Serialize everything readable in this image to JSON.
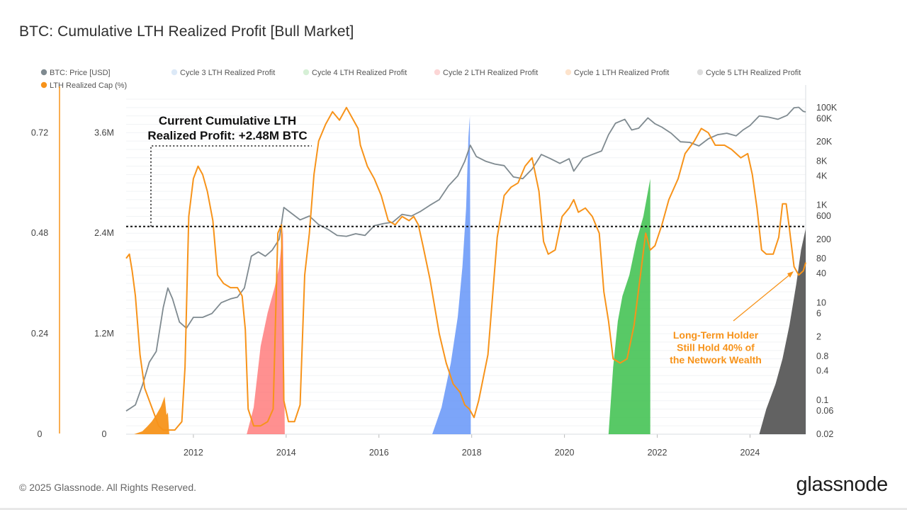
{
  "title": "BTC: Cumulative LTH Realized Profit [Bull Market]",
  "footer": "© 2025 Glassnode. All Rights Reserved.",
  "brand": "glassnode",
  "chart_data": {
    "type": "area",
    "title": "BTC: Cumulative LTH Realized Profit [Bull Market]",
    "legend": [
      {
        "name": "BTC: Price [USD]",
        "color": "#7f8a90"
      },
      {
        "name": "Cycle 3 LTH Realized Profit",
        "color": "#dce9f7"
      },
      {
        "name": "Cycle 4 LTH Realized Profit",
        "color": "#d6f0d6"
      },
      {
        "name": "Cycle 2 LTH Realized Profit",
        "color": "#fcd6d6"
      },
      {
        "name": "Cycle 1 LTH Realized Profit",
        "color": "#fde3cc"
      },
      {
        "name": "Cycle 5 LTH Realized Profit",
        "color": "#dcdcdc"
      },
      {
        "name": "LTH Realized Cap (%)",
        "color": "#f7931a"
      }
    ],
    "legend_position": "top",
    "x_ticks": [
      "2012",
      "2014",
      "2016",
      "2018",
      "2020",
      "2022",
      "2024"
    ],
    "x_range": [
      2010.55,
      2025.2
    ],
    "y_left_pct_ticks": [
      "0",
      "0.24",
      "0.48",
      "0.72"
    ],
    "y_left_pct_range": [
      0,
      0.8
    ],
    "y_left_btc_ticks": [
      "0",
      "1.2M",
      "2.4M",
      "3.6M"
    ],
    "y_left_btc_range": [
      0,
      4000000
    ],
    "y_right_ticks": [
      "0.02",
      "0.06",
      "0.1",
      "0.4",
      "0.8",
      "2",
      "6",
      "10",
      "40",
      "80",
      "200",
      "600",
      "1K",
      "4K",
      "8K",
      "20K",
      "60K",
      "100K"
    ],
    "y_right_scale": "log",
    "y_right_range": [
      0.02,
      150000
    ],
    "grid": true,
    "reference_line": {
      "label": "Current Cumulative LTH Realized Profit: +2.48M BTC",
      "value_btc": 2480000
    },
    "annotation": {
      "text_lines": [
        "Long-Term Holder",
        "Still Hold 40% of",
        "the Network Wealth"
      ],
      "color": "#f7931a"
    },
    "callout_lines": [
      "Current Cumulative LTH",
      "Realized Profit: +2.48M BTC"
    ],
    "cycle_areas": [
      {
        "name": "Cycle 1 LTH Realized Profit",
        "color": "#f7931a",
        "opacity": 0.95,
        "points": [
          [
            2010.72,
            0
          ],
          [
            2010.9,
            35000
          ],
          [
            2011.0,
            90000
          ],
          [
            2011.1,
            150000
          ],
          [
            2011.2,
            230000
          ],
          [
            2011.3,
            330000
          ],
          [
            2011.38,
            450000
          ],
          [
            2011.42,
            230000
          ],
          [
            2011.45,
            260000
          ],
          [
            2011.48,
            0
          ]
        ]
      },
      {
        "name": "Cycle 2 LTH Realized Profit",
        "color": "#ff6b6b",
        "opacity": 0.75,
        "points": [
          [
            2013.15,
            0
          ],
          [
            2013.3,
            320000
          ],
          [
            2013.45,
            1050000
          ],
          [
            2013.6,
            1450000
          ],
          [
            2013.75,
            1750000
          ],
          [
            2013.85,
            2000000
          ],
          [
            2013.93,
            2450000
          ],
          [
            2013.97,
            0
          ]
        ]
      },
      {
        "name": "Cycle 3 LTH Realized Profit",
        "color": "#5b8ef7",
        "opacity": 0.8,
        "points": [
          [
            2017.15,
            0
          ],
          [
            2017.35,
            320000
          ],
          [
            2017.55,
            850000
          ],
          [
            2017.7,
            1400000
          ],
          [
            2017.8,
            2000000
          ],
          [
            2017.88,
            2700000
          ],
          [
            2017.93,
            3550000
          ],
          [
            2017.96,
            3800000
          ],
          [
            2017.98,
            0
          ]
        ]
      },
      {
        "name": "Cycle 4 LTH Realized Profit",
        "color": "#3bbf4b",
        "opacity": 0.85,
        "points": [
          [
            2020.95,
            0
          ],
          [
            2021.05,
            800000
          ],
          [
            2021.15,
            1350000
          ],
          [
            2021.25,
            1650000
          ],
          [
            2021.4,
            1900000
          ],
          [
            2021.55,
            2300000
          ],
          [
            2021.7,
            2600000
          ],
          [
            2021.85,
            3050000
          ],
          [
            2021.85,
            0
          ]
        ]
      },
      {
        "name": "Cycle 5 LTH Realized Profit",
        "color": "#555555",
        "opacity": 0.92,
        "points": [
          [
            2024.2,
            0
          ],
          [
            2024.35,
            300000
          ],
          [
            2024.55,
            600000
          ],
          [
            2024.7,
            900000
          ],
          [
            2024.85,
            1300000
          ],
          [
            2025.0,
            1800000
          ],
          [
            2025.1,
            2200000
          ],
          [
            2025.2,
            2450000
          ],
          [
            2025.2,
            0
          ]
        ]
      }
    ],
    "lth_realized_cap_pct": [
      [
        2010.55,
        0.42
      ],
      [
        2010.62,
        0.43
      ],
      [
        2010.68,
        0.39
      ],
      [
        2010.75,
        0.33
      ],
      [
        2010.85,
        0.19
      ],
      [
        2010.95,
        0.11
      ],
      [
        2011.05,
        0.08
      ],
      [
        2011.15,
        0.05
      ],
      [
        2011.25,
        0.02
      ],
      [
        2011.35,
        0.01
      ],
      [
        2011.45,
        0.01
      ],
      [
        2011.6,
        0.01
      ],
      [
        2011.75,
        0.03
      ],
      [
        2011.82,
        0.16
      ],
      [
        2011.9,
        0.52
      ],
      [
        2012.0,
        0.61
      ],
      [
        2012.1,
        0.64
      ],
      [
        2012.2,
        0.62
      ],
      [
        2012.3,
        0.58
      ],
      [
        2012.42,
        0.51
      ],
      [
        2012.52,
        0.38
      ],
      [
        2012.65,
        0.36
      ],
      [
        2012.8,
        0.35
      ],
      [
        2012.95,
        0.35
      ],
      [
        2013.05,
        0.33
      ],
      [
        2013.12,
        0.25
      ],
      [
        2013.18,
        0.06
      ],
      [
        2013.3,
        0.02
      ],
      [
        2013.45,
        0.02
      ],
      [
        2013.6,
        0.03
      ],
      [
        2013.72,
        0.06
      ],
      [
        2013.82,
        0.48
      ],
      [
        2013.9,
        0.5
      ],
      [
        2013.95,
        0.08
      ],
      [
        2014.05,
        0.03
      ],
      [
        2014.18,
        0.03
      ],
      [
        2014.3,
        0.07
      ],
      [
        2014.4,
        0.38
      ],
      [
        2014.5,
        0.48
      ],
      [
        2014.6,
        0.62
      ],
      [
        2014.7,
        0.7
      ],
      [
        2014.85,
        0.74
      ],
      [
        2015.0,
        0.77
      ],
      [
        2015.15,
        0.75
      ],
      [
        2015.3,
        0.78
      ],
      [
        2015.45,
        0.75
      ],
      [
        2015.55,
        0.73
      ],
      [
        2015.6,
        0.69
      ],
      [
        2015.75,
        0.64
      ],
      [
        2015.9,
        0.61
      ],
      [
        2016.05,
        0.57
      ],
      [
        2016.2,
        0.51
      ],
      [
        2016.35,
        0.5
      ],
      [
        2016.5,
        0.52
      ],
      [
        2016.65,
        0.51
      ],
      [
        2016.75,
        0.52
      ],
      [
        2016.85,
        0.5
      ],
      [
        2016.95,
        0.45
      ],
      [
        2017.1,
        0.37
      ],
      [
        2017.3,
        0.24
      ],
      [
        2017.45,
        0.17
      ],
      [
        2017.6,
        0.12
      ],
      [
        2017.75,
        0.1
      ],
      [
        2017.85,
        0.07
      ],
      [
        2017.95,
        0.06
      ],
      [
        2018.05,
        0.04
      ],
      [
        2018.15,
        0.08
      ],
      [
        2018.35,
        0.19
      ],
      [
        2018.55,
        0.47
      ],
      [
        2018.7,
        0.57
      ],
      [
        2018.85,
        0.59
      ],
      [
        2019.0,
        0.6
      ],
      [
        2019.15,
        0.64
      ],
      [
        2019.3,
        0.66
      ],
      [
        2019.45,
        0.58
      ],
      [
        2019.55,
        0.46
      ],
      [
        2019.65,
        0.43
      ],
      [
        2019.8,
        0.44
      ],
      [
        2019.95,
        0.52
      ],
      [
        2020.1,
        0.54
      ],
      [
        2020.2,
        0.56
      ],
      [
        2020.3,
        0.53
      ],
      [
        2020.45,
        0.54
      ],
      [
        2020.6,
        0.52
      ],
      [
        2020.75,
        0.48
      ],
      [
        2020.85,
        0.34
      ],
      [
        2020.95,
        0.27
      ],
      [
        2021.05,
        0.18
      ],
      [
        2021.2,
        0.17
      ],
      [
        2021.35,
        0.18
      ],
      [
        2021.5,
        0.26
      ],
      [
        2021.65,
        0.39
      ],
      [
        2021.75,
        0.48
      ],
      [
        2021.85,
        0.44
      ],
      [
        2021.95,
        0.45
      ],
      [
        2022.1,
        0.5
      ],
      [
        2022.25,
        0.56
      ],
      [
        2022.45,
        0.61
      ],
      [
        2022.6,
        0.67
      ],
      [
        2022.8,
        0.7
      ],
      [
        2022.95,
        0.73
      ],
      [
        2023.1,
        0.72
      ],
      [
        2023.25,
        0.69
      ],
      [
        2023.45,
        0.69
      ],
      [
        2023.6,
        0.68
      ],
      [
        2023.8,
        0.66
      ],
      [
        2023.95,
        0.67
      ],
      [
        2024.05,
        0.62
      ],
      [
        2024.15,
        0.54
      ],
      [
        2024.25,
        0.44
      ],
      [
        2024.35,
        0.43
      ],
      [
        2024.5,
        0.43
      ],
      [
        2024.62,
        0.47
      ],
      [
        2024.7,
        0.55
      ],
      [
        2024.78,
        0.55
      ],
      [
        2024.85,
        0.49
      ],
      [
        2024.95,
        0.4
      ],
      [
        2025.05,
        0.38
      ],
      [
        2025.15,
        0.39
      ],
      [
        2025.2,
        0.41
      ]
    ],
    "btc_price_usd": [
      [
        2010.55,
        0.06
      ],
      [
        2010.75,
        0.08
      ],
      [
        2010.9,
        0.2
      ],
      [
        2011.05,
        0.6
      ],
      [
        2011.2,
        1.0
      ],
      [
        2011.35,
        8
      ],
      [
        2011.45,
        20
      ],
      [
        2011.55,
        12
      ],
      [
        2011.7,
        4
      ],
      [
        2011.85,
        3
      ],
      [
        2012.0,
        5
      ],
      [
        2012.2,
        5
      ],
      [
        2012.4,
        6
      ],
      [
        2012.6,
        10
      ],
      [
        2012.8,
        12
      ],
      [
        2012.95,
        13
      ],
      [
        2013.1,
        20
      ],
      [
        2013.25,
        90
      ],
      [
        2013.4,
        110
      ],
      [
        2013.55,
        90
      ],
      [
        2013.7,
        120
      ],
      [
        2013.85,
        200
      ],
      [
        2013.95,
        900
      ],
      [
        2014.1,
        700
      ],
      [
        2014.3,
        500
      ],
      [
        2014.5,
        600
      ],
      [
        2014.7,
        400
      ],
      [
        2014.9,
        320
      ],
      [
        2015.1,
        240
      ],
      [
        2015.3,
        230
      ],
      [
        2015.5,
        260
      ],
      [
        2015.7,
        240
      ],
      [
        2015.9,
        380
      ],
      [
        2016.1,
        420
      ],
      [
        2016.3,
        450
      ],
      [
        2016.5,
        650
      ],
      [
        2016.7,
        600
      ],
      [
        2016.9,
        750
      ],
      [
        2017.1,
        1000
      ],
      [
        2017.3,
        1300
      ],
      [
        2017.5,
        2500
      ],
      [
        2017.7,
        4000
      ],
      [
        2017.85,
        8000
      ],
      [
        2017.97,
        17000
      ],
      [
        2018.1,
        10000
      ],
      [
        2018.3,
        8000
      ],
      [
        2018.5,
        7000
      ],
      [
        2018.7,
        6500
      ],
      [
        2018.9,
        3800
      ],
      [
        2019.1,
        3500
      ],
      [
        2019.3,
        5500
      ],
      [
        2019.5,
        11000
      ],
      [
        2019.7,
        9000
      ],
      [
        2019.9,
        7200
      ],
      [
        2020.1,
        9000
      ],
      [
        2020.2,
        5000
      ],
      [
        2020.4,
        9200
      ],
      [
        2020.6,
        11000
      ],
      [
        2020.8,
        13000
      ],
      [
        2020.95,
        28000
      ],
      [
        2021.1,
        48000
      ],
      [
        2021.3,
        58000
      ],
      [
        2021.45,
        35000
      ],
      [
        2021.6,
        38000
      ],
      [
        2021.8,
        62000
      ],
      [
        2021.95,
        47000
      ],
      [
        2022.1,
        40000
      ],
      [
        2022.3,
        30000
      ],
      [
        2022.5,
        20000
      ],
      [
        2022.7,
        19500
      ],
      [
        2022.9,
        16500
      ],
      [
        2023.1,
        23000
      ],
      [
        2023.3,
        28000
      ],
      [
        2023.5,
        30000
      ],
      [
        2023.7,
        26500
      ],
      [
        2023.85,
        35000
      ],
      [
        2024.0,
        43000
      ],
      [
        2024.2,
        68000
      ],
      [
        2024.4,
        64000
      ],
      [
        2024.6,
        58000
      ],
      [
        2024.8,
        70000
      ],
      [
        2024.95,
        100000
      ],
      [
        2025.05,
        102000
      ],
      [
        2025.15,
        84000
      ],
      [
        2025.2,
        82000
      ]
    ]
  }
}
